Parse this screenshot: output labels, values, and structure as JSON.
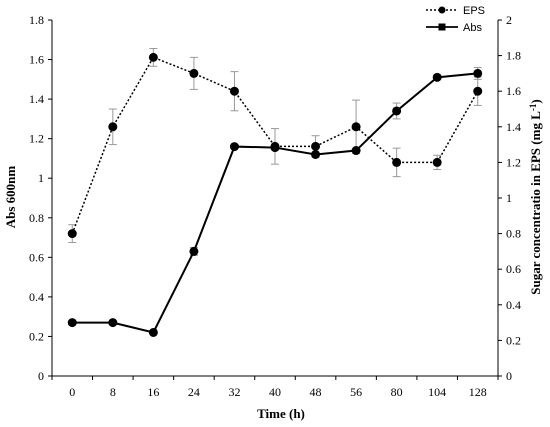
{
  "chart_data": {
    "type": "line",
    "categories": [
      "0",
      "8",
      "16",
      "24",
      "32",
      "40",
      "48",
      "56",
      "80",
      "104",
      "128"
    ],
    "xlabel": "Time (h)",
    "ylabel_left": "Abs 600nm",
    "ylabel_right_main": "Sugar concentratio in EPS (mg L",
    "ylabel_right_sup": "-1",
    "ylabel_right_end": ")",
    "ylim_left": [
      0,
      1.8
    ],
    "ylim_right": [
      0,
      2
    ],
    "yticks_left": [
      "0",
      "0.2",
      "0.4",
      "0.6",
      "0.8",
      "1",
      "1.2",
      "1.4",
      "1.6",
      "1.8"
    ],
    "yticks_right": [
      "0",
      "0.2",
      "0.4",
      "0.6",
      "0.8",
      "1",
      "1.2",
      "1.4",
      "1.6",
      "1.8",
      "2"
    ],
    "grid": false,
    "legend_position": "top-right",
    "series": [
      {
        "name": "EPS",
        "axis": "right",
        "line_style": "dotted",
        "marker": "circle",
        "color": "#000000",
        "values": [
          0.8,
          1.4,
          1.79,
          1.7,
          1.6,
          1.29,
          1.29,
          1.4,
          1.2,
          1.2,
          1.6
        ],
        "errors": [
          0.05,
          0.1,
          0.05,
          0.09,
          0.11,
          0.1,
          0.06,
          0.15,
          0.08,
          0.04,
          0.08
        ]
      },
      {
        "name": "Abs",
        "axis": "left",
        "line_style": "solid",
        "marker": "square",
        "color": "#000000",
        "values": [
          0.27,
          0.27,
          0.22,
          0.63,
          1.16,
          1.155,
          1.12,
          1.14,
          1.34,
          1.51,
          1.53
        ],
        "errors": [
          0,
          0,
          0,
          0.02,
          0,
          0,
          0,
          0,
          0.04,
          0,
          0.03
        ]
      }
    ]
  }
}
